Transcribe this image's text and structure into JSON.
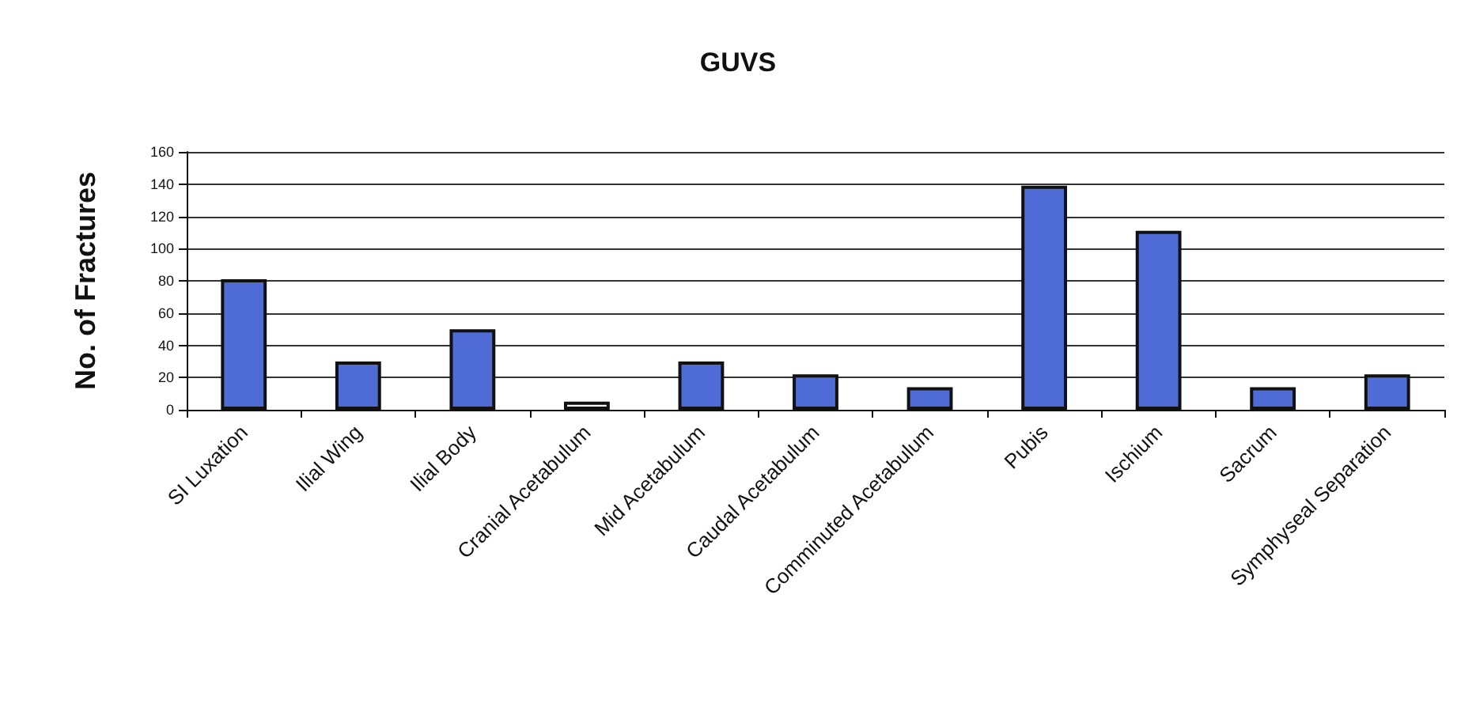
{
  "chart_data": {
    "type": "bar",
    "title": "GUVS",
    "ylabel": "No. of Fractures",
    "categories": [
      "SI Luxation",
      "Ilial Wing",
      "Ilial Body",
      "Cranial Acetabulum",
      "Mid Acetabulum",
      "Caudal Acetabulum",
      "Comminuted Acetabulum",
      "Pubis",
      "Ischium",
      "Sacrum",
      "Symphyseal Separation"
    ],
    "values": [
      81,
      30,
      50,
      5,
      30,
      22,
      14,
      139,
      111,
      14,
      22
    ],
    "colors": [
      "#4f6bd6",
      "#4f6bd6",
      "#4f6bd6",
      "#ffffff",
      "#4f6bd6",
      "#4f6bd6",
      "#4f6bd6",
      "#4f6bd6",
      "#4f6bd6",
      "#4f6bd6",
      "#4f6bd6"
    ],
    "ylim": [
      0,
      160
    ],
    "yticks": [
      0,
      20,
      40,
      60,
      80,
      100,
      120,
      140,
      160
    ],
    "grid": "y"
  }
}
